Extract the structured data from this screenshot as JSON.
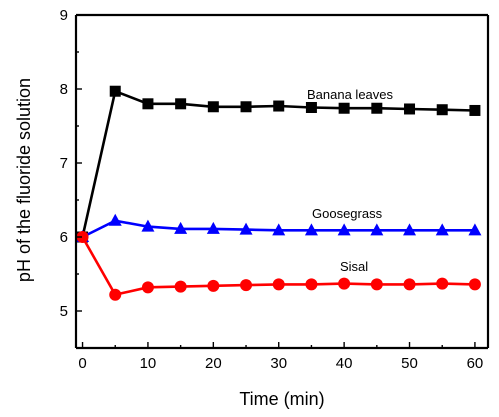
{
  "chart_data": {
    "type": "line",
    "xlabel": "Time (min)",
    "ylabel": "pH of the fluoride solution",
    "xlim": [
      -1,
      62
    ],
    "ylim": [
      4.5,
      9
    ],
    "x_ticks": [
      0,
      10,
      20,
      30,
      40,
      50,
      60
    ],
    "x_tick_labels": [
      "0",
      "10",
      "20",
      "30",
      "40",
      "50",
      "60"
    ],
    "y_ticks": [
      5,
      6,
      7,
      8,
      9
    ],
    "y_tick_labels": [
      "5",
      "6",
      "7",
      "8",
      "9"
    ],
    "x": [
      0,
      5,
      10,
      15,
      20,
      25,
      30,
      35,
      40,
      45,
      50,
      55,
      60
    ],
    "series": [
      {
        "name": "Banana leaves",
        "color": "#000000",
        "marker": "square",
        "values": [
          6.0,
          7.97,
          7.8,
          7.8,
          7.76,
          7.76,
          7.77,
          7.75,
          7.74,
          7.74,
          7.73,
          7.72,
          7.71
        ]
      },
      {
        "name": "Goosegrass",
        "color": "#0000ff",
        "marker": "triangle",
        "values": [
          6.0,
          6.22,
          6.14,
          6.11,
          6.11,
          6.1,
          6.09,
          6.09,
          6.09,
          6.09,
          6.09,
          6.09,
          6.09
        ]
      },
      {
        "name": "Sisal",
        "color": "#ff0000",
        "marker": "circle",
        "values": [
          6.0,
          5.22,
          5.32,
          5.33,
          5.34,
          5.35,
          5.36,
          5.36,
          5.37,
          5.36,
          5.36,
          5.37,
          5.36
        ]
      }
    ]
  }
}
